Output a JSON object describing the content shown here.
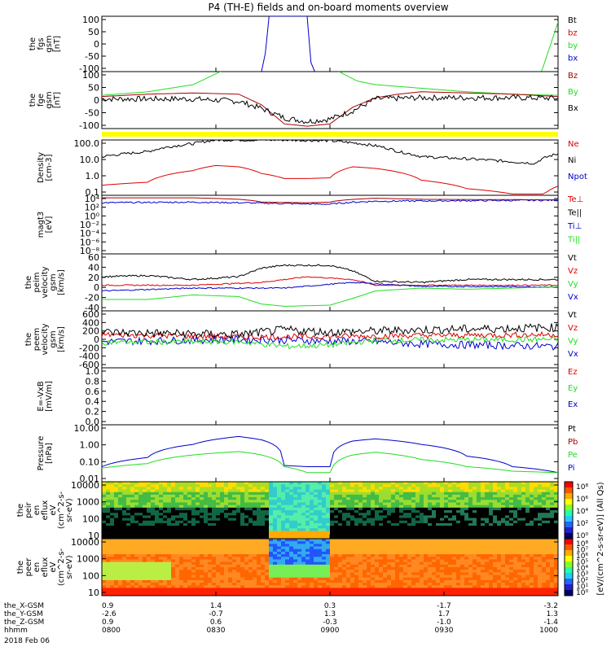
{
  "title": "P4 (TH-E) fields and on-board moments overview",
  "colors": {
    "black": "#000000",
    "red": "#dd0000",
    "green": "#22dd22",
    "blue": "#0000cc",
    "darkred": "#aa0000",
    "yellow": "#ffff00"
  },
  "chart_data": [
    {
      "type": "line",
      "id": "fgs",
      "ylabel": [
        "the",
        "fgs",
        "gsm",
        "[nT]"
      ],
      "ylim": [
        -100,
        100
      ],
      "scale": "linear",
      "yticks": [
        "100",
        "50",
        "0",
        "-50",
        "-100"
      ],
      "legend": [
        {
          "name": "Bt",
          "color": "#000000"
        },
        {
          "name": "bz",
          "color": "#dd0000"
        },
        {
          "name": "by",
          "color": "#22dd22"
        },
        {
          "name": "bx",
          "color": "#0000cc"
        }
      ],
      "series": [
        {
          "name": "bx",
          "color": "#0000cc",
          "x": [
            0,
            0.355,
            0.365,
            0.45,
            0.46,
            1
          ],
          "y": [
            -100,
            -100,
            100,
            100,
            -100,
            -100
          ]
        },
        {
          "name": "by",
          "color": "#22dd22",
          "x": [
            0,
            0.96,
            1.0
          ],
          "y": [
            -120,
            -120,
            80
          ]
        }
      ]
    },
    {
      "type": "line",
      "id": "fge",
      "ylabel": [
        "the",
        "fge",
        "gsm",
        "[nT]"
      ],
      "ylim": [
        -130,
        110
      ],
      "scale": "linear",
      "yticks": [
        "100",
        "50",
        "0",
        "-50",
        "-100"
      ],
      "legend": [
        {
          "name": "Bz",
          "color": "#aa0000"
        },
        {
          "name": "By",
          "color": "#22dd22"
        },
        {
          "name": "Bx",
          "color": "#000000"
        }
      ],
      "series": [
        {
          "name": "By",
          "color": "#22dd22",
          "x": [
            0,
            0.1,
            0.2,
            0.26,
            0.28,
            0.5,
            0.52,
            0.56,
            0.6,
            0.7,
            0.8,
            0.9,
            1
          ],
          "y": [
            10,
            25,
            55,
            110,
            130,
            130,
            110,
            70,
            55,
            40,
            25,
            15,
            10
          ]
        },
        {
          "name": "Bz",
          "color": "#aa0000",
          "x": [
            0,
            0.1,
            0.2,
            0.3,
            0.35,
            0.4,
            0.45,
            0.5,
            0.55,
            0.6,
            0.65,
            0.7,
            0.8,
            0.9,
            1
          ],
          "y": [
            5,
            15,
            20,
            15,
            -30,
            -110,
            -120,
            -110,
            -40,
            0,
            15,
            25,
            20,
            15,
            5
          ]
        },
        {
          "name": "Bx",
          "color": "#000000",
          "noise": 12,
          "x": [
            0,
            0.1,
            0.2,
            0.3,
            0.35,
            0.4,
            0.45,
            0.5,
            0.55,
            0.6,
            0.7,
            0.8,
            0.9,
            1
          ],
          "y": [
            -5,
            -5,
            -5,
            -15,
            -45,
            -85,
            -100,
            -90,
            -55,
            -5,
            0,
            0,
            0,
            -2
          ]
        }
      ]
    },
    {
      "type": "line",
      "id": "density",
      "ylabel": [
        "Density",
        "[cm-3]"
      ],
      "ylim": [
        0.1,
        200
      ],
      "scale": "log",
      "yticks": [
        "100.0",
        "10.0",
        "1.0",
        "0.1"
      ],
      "legend": [
        {
          "name": "Ne",
          "color": "#dd0000"
        },
        {
          "name": "Ni",
          "color": "#000000"
        },
        {
          "name": "Npot",
          "color": "#0000cc"
        }
      ],
      "series": [
        {
          "name": "Ni",
          "color": "#000000",
          "noise": 0.08,
          "x": [
            0,
            0.1,
            0.2,
            0.25,
            0.3,
            0.4,
            0.5,
            0.6,
            0.65,
            0.7,
            0.8,
            0.9,
            0.95,
            1
          ],
          "y": [
            20,
            40,
            120,
            200,
            200,
            200,
            180,
            90,
            40,
            20,
            15,
            10,
            8,
            30
          ]
        },
        {
          "name": "Ne",
          "color": "#dd0000",
          "x": [
            0,
            0.1,
            0.2,
            0.25,
            0.3,
            0.35,
            0.4,
            0.45,
            0.5,
            0.55,
            0.6,
            0.7,
            0.8,
            0.9,
            0.97,
            1
          ],
          "y": [
            0.4,
            0.6,
            3,
            6,
            5,
            2,
            1,
            1,
            1.1,
            5,
            4,
            0.8,
            0.25,
            0.12,
            0.12,
            0.35
          ]
        }
      ]
    },
    {
      "type": "line",
      "id": "temperature",
      "ylabel": [
        "magt3",
        "[eV]"
      ],
      "ylim": [
        1e-08,
        10000.0
      ],
      "scale": "log",
      "yticks": [
        "10⁴",
        "10²",
        "10⁰",
        "10⁻²",
        "10⁻⁴",
        "10⁻⁶",
        "10⁻⁸"
      ],
      "legend": [
        {
          "name": "Te⊥",
          "color": "#dd0000"
        },
        {
          "name": "Te||",
          "color": "#000000"
        },
        {
          "name": "Ti⊥",
          "color": "#0000cc"
        },
        {
          "name": "Ti||",
          "color": "#22dd22"
        }
      ],
      "series": [
        {
          "name": "Ti⊥",
          "color": "#0000cc",
          "noise": 0.15,
          "x": [
            0,
            0.2,
            0.4,
            0.5,
            0.6,
            1
          ],
          "y": [
            300,
            400,
            200,
            150,
            600,
            1000
          ]
        },
        {
          "name": "Te⊥",
          "color": "#aa0000",
          "x": [
            0,
            0.2,
            0.3,
            0.35,
            0.45,
            0.5,
            0.6,
            0.7,
            1
          ],
          "y": [
            3000,
            3000,
            1500,
            400,
            300,
            400,
            2500,
            1500,
            1200
          ]
        }
      ]
    },
    {
      "type": "line",
      "id": "peim",
      "ylabel": [
        "the",
        "peim",
        "velocity",
        "gsm",
        "[km/s]"
      ],
      "ylim": [
        -40,
        60
      ],
      "scale": "linear",
      "yticks": [
        "60",
        "40",
        "20",
        "0",
        "-20",
        "-40"
      ],
      "legend": [
        {
          "name": "Vt",
          "color": "#000000"
        },
        {
          "name": "Vz",
          "color": "#dd0000"
        },
        {
          "name": "Vy",
          "color": "#22dd22"
        },
        {
          "name": "Vx",
          "color": "#0000cc"
        }
      ],
      "series": [
        {
          "name": "Vt",
          "color": "#000000",
          "noise": 1.5,
          "x": [
            0,
            0.1,
            0.2,
            0.3,
            0.35,
            0.4,
            0.5,
            0.55,
            0.6,
            0.7,
            0.8,
            0.9,
            1
          ],
          "y": [
            20,
            22,
            15,
            20,
            35,
            40,
            40,
            30,
            12,
            10,
            15,
            15,
            15
          ]
        },
        {
          "name": "Vz",
          "color": "#dd0000",
          "noise": 1,
          "x": [
            0,
            0.2,
            0.35,
            0.45,
            0.55,
            0.6,
            1
          ],
          "y": [
            5,
            5,
            10,
            20,
            15,
            5,
            5
          ]
        },
        {
          "name": "Vx",
          "color": "#0000cc",
          "noise": 1,
          "x": [
            0,
            0.2,
            0.4,
            0.55,
            0.7,
            1
          ],
          "y": [
            -5,
            0,
            0,
            10,
            3,
            2
          ]
        },
        {
          "name": "Vy",
          "color": "#22dd22",
          "x": [
            0,
            0.1,
            0.2,
            0.3,
            0.35,
            0.4,
            0.5,
            0.55,
            0.6,
            0.7,
            0.8,
            0.9,
            1
          ],
          "y": [
            -20,
            -20,
            -12,
            -15,
            -28,
            -32,
            -30,
            -18,
            -5,
            0,
            -2,
            0,
            2
          ]
        }
      ]
    },
    {
      "type": "line",
      "id": "peem",
      "ylabel": [
        "the",
        "peem",
        "velocity",
        "gsm",
        "[km/s]"
      ],
      "ylim": [
        -600,
        600
      ],
      "scale": "linear",
      "yticks": [
        "600",
        "400",
        "200",
        "0",
        "-200",
        "-400",
        "-600"
      ],
      "legend": [
        {
          "name": "Vt",
          "color": "#000000"
        },
        {
          "name": "Vz",
          "color": "#dd0000"
        },
        {
          "name": "Vy",
          "color": "#22dd22"
        },
        {
          "name": "Vx",
          "color": "#0000cc"
        }
      ],
      "series": [
        {
          "name": "Vx",
          "color": "#0000cc",
          "noise": 80,
          "x": [
            0,
            0.3,
            0.6,
            0.7,
            1
          ],
          "y": [
            -50,
            0,
            -50,
            -100,
            -150
          ]
        },
        {
          "name": "Vy",
          "color": "#22dd22",
          "noise": 60,
          "x": [
            0,
            0.3,
            0.4,
            0.5,
            0.6,
            1
          ],
          "y": [
            -60,
            -50,
            -150,
            -120,
            -20,
            0
          ]
        },
        {
          "name": "Vz",
          "color": "#dd0000",
          "noise": 60,
          "x": [
            0,
            0.3,
            0.5,
            0.7,
            1
          ],
          "y": [
            100,
            50,
            60,
            80,
            100
          ]
        },
        {
          "name": "Vt",
          "color": "#000000",
          "noise": 90,
          "x": [
            0,
            0.3,
            0.4,
            0.5,
            0.7,
            1
          ],
          "y": [
            150,
            100,
            200,
            150,
            200,
            250
          ]
        }
      ]
    },
    {
      "type": "line",
      "id": "efield",
      "ylabel": [
        "E=-VxB",
        "[mV/m]"
      ],
      "ylim": [
        0,
        1
      ],
      "scale": "linear",
      "yticks": [
        "1.0",
        "0.8",
        "0.6",
        "0.4",
        "0.2",
        "0.0"
      ],
      "legend": [
        {
          "name": "Ez",
          "color": "#dd0000"
        },
        {
          "name": "Ey",
          "color": "#22dd22"
        },
        {
          "name": "Ex",
          "color": "#0000cc"
        }
      ],
      "series": []
    },
    {
      "type": "line",
      "id": "pressure",
      "ylabel": [
        "Pressure",
        "[nPa]"
      ],
      "ylim": [
        0.005,
        30
      ],
      "scale": "log",
      "yticks": [
        "10.00",
        "1.00",
        "0.10",
        "0.01"
      ],
      "legend": [
        {
          "name": "Pt",
          "color": "#000000"
        },
        {
          "name": "Pb",
          "color": "#aa0000"
        },
        {
          "name": "Pe",
          "color": "#22dd22"
        },
        {
          "name": "Pi",
          "color": "#0000cc"
        }
      ],
      "series": [
        {
          "name": "Pi",
          "color": "#0000cc",
          "x": [
            0,
            0.1,
            0.2,
            0.3,
            0.35,
            0.4,
            0.45,
            0.5,
            0.55,
            0.6,
            0.7,
            0.8,
            0.9,
            1
          ],
          "y": [
            0.05,
            0.2,
            1.5,
            5,
            3,
            0.06,
            0.05,
            0.05,
            2.5,
            3.5,
            1.5,
            0.25,
            0.05,
            0.02
          ]
        },
        {
          "name": "Pe",
          "color": "#22dd22",
          "x": [
            0,
            0.1,
            0.2,
            0.3,
            0.35,
            0.4,
            0.45,
            0.5,
            0.55,
            0.6,
            0.7,
            0.8,
            0.9,
            1
          ],
          "y": [
            0.04,
            0.08,
            0.3,
            0.5,
            0.3,
            0.05,
            0.02,
            0.02,
            0.3,
            0.45,
            0.15,
            0.05,
            0.025,
            0.02
          ]
        }
      ]
    },
    {
      "type": "heatmap",
      "id": "peir",
      "ylabel": [
        "the",
        "peir",
        "en",
        "eflux",
        "eV",
        "(cm^2-s-",
        "sr-eV)"
      ],
      "ylim": [
        5,
        30000
      ],
      "scale": "log",
      "yticks": [
        "10000",
        "1000",
        "100",
        "10"
      ],
      "colorbar": {
        "ticks": [
          "10⁸",
          "10⁶",
          "10⁴",
          "10²",
          "10⁰"
        ]
      }
    },
    {
      "type": "heatmap",
      "id": "peer",
      "ylabel": [
        "the",
        "peer",
        "en",
        "eflux",
        "eV",
        "(cm^2-s-",
        "sr-eV)"
      ],
      "ylim": [
        5,
        30000
      ],
      "scale": "log",
      "yticks": [
        "10000",
        "1000",
        "100",
        "10"
      ],
      "colorbar": {
        "ticks": [
          "10⁸",
          "10⁷",
          "10⁶",
          "10⁵",
          "10⁴",
          "10³",
          "10²",
          "10¹",
          "10⁰"
        ]
      }
    }
  ],
  "colorbar_label": "[eV/(cm^2-s-sr-eV)] (All Qs)",
  "xaxis": {
    "row_labels": [
      "the_X-GSM",
      "the_Y-GSM",
      "the_Z-GSM",
      "hhmm"
    ],
    "columns": [
      [
        "0.9",
        "-2.6",
        "0.9",
        "0800"
      ],
      [
        "1.4",
        "-0.7",
        "0.6",
        "0830"
      ],
      [
        "0.3",
        "1.3",
        "-0.3",
        "0900"
      ],
      [
        "-1.7",
        "1.7",
        "-1.0",
        "0930"
      ],
      [
        "-3.2",
        "1.3",
        "-1.4",
        "1000"
      ]
    ],
    "date": "2018 Feb 06"
  }
}
